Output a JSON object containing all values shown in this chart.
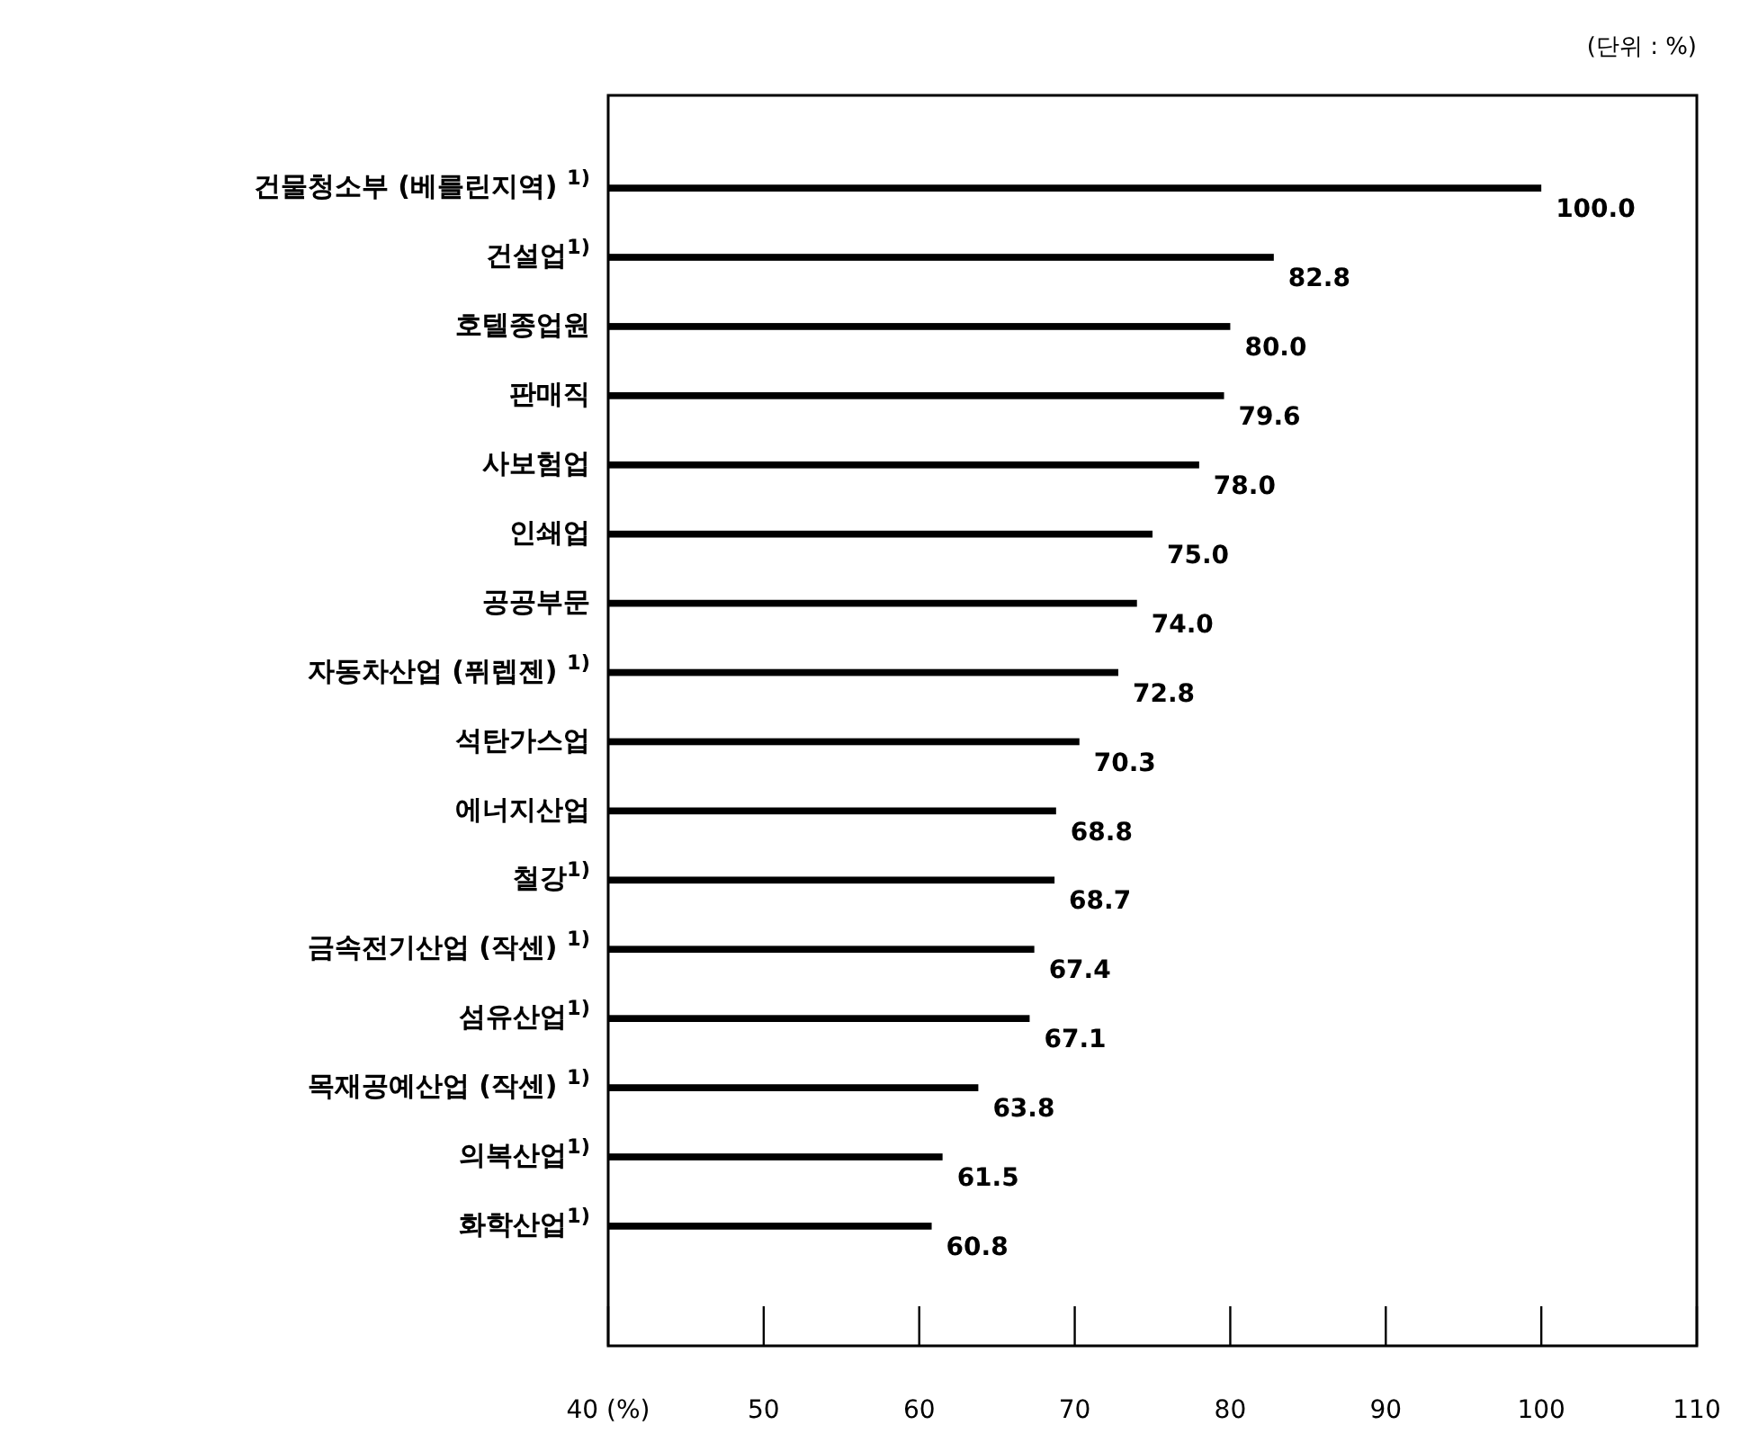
{
  "chart_data": {
    "type": "bar",
    "orientation": "horizontal",
    "categories": [
      "건물청소부 (베를린지역) $^{1)}$",
      "건설업$^{1)}$",
      "호텔종업원",
      "판매직",
      "사보험업",
      "인쇄업",
      "공공부문",
      "자동차산업 (퓌렙젠) $^{1)}$",
      "석탄가스업",
      "에너지산업",
      "철강$^{1)}$",
      "금속전기산업 (작센) $^{1)}$",
      "섬유산업$^{1)}$",
      "목재공예산업 (작센) $^{1)}$",
      "의복산업$^{1)}$",
      "화학산업$^{1)}$"
    ],
    "values": [
      100.0,
      82.8,
      80.0,
      79.6,
      78.0,
      75.0,
      74.0,
      72.8,
      70.3,
      68.8,
      68.7,
      67.4,
      67.1,
      63.8,
      61.5,
      60.8
    ],
    "value_labels": [
      "100.0",
      "82.8",
      "80.0",
      "79.6",
      "78.0",
      "75.0",
      "74.0",
      "72.8",
      "70.3",
      "68.8",
      "68.7",
      "67.4",
      "67.1",
      "63.8",
      "61.5",
      "60.8"
    ],
    "color": "#000000",
    "xlim": [
      40,
      110
    ],
    "xticks": [
      {
        "value": 40,
        "label": "40 (%)"
      },
      50,
      60,
      70,
      80,
      90,
      100,
      110
    ],
    "annotations": [
      "(단위 : %)"
    ],
    "grid": false
  }
}
